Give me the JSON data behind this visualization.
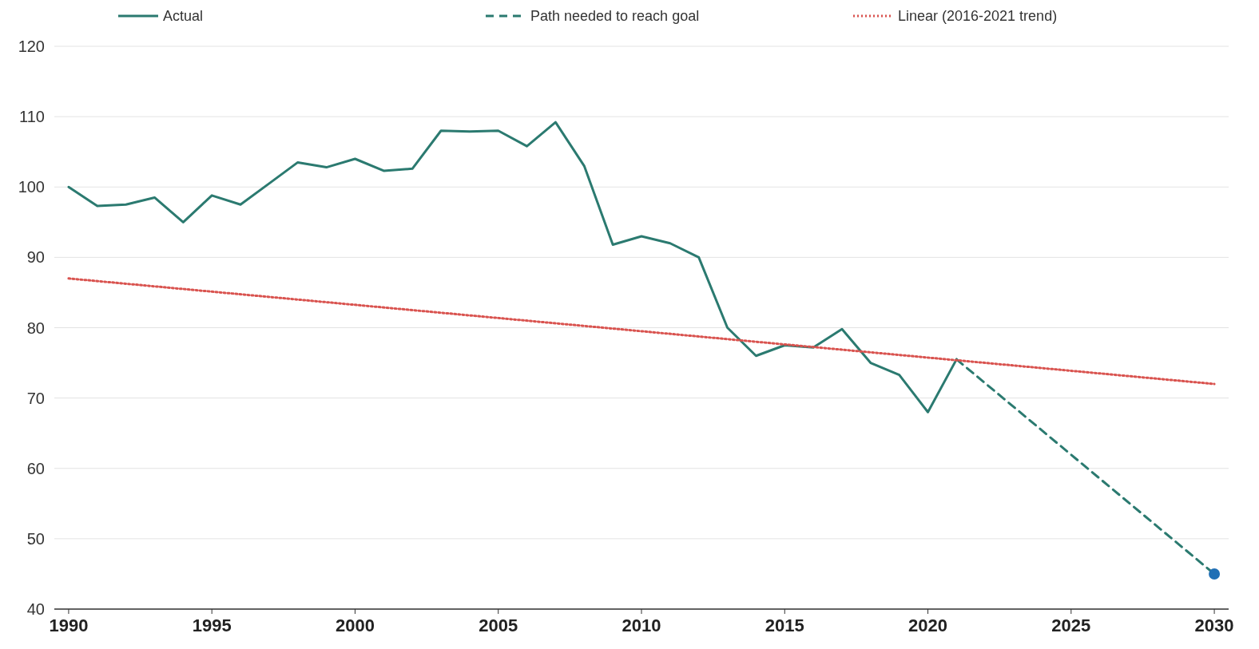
{
  "chart_data": {
    "type": "line",
    "xlim": [
      1989.5,
      2030.5
    ],
    "xticks": [
      1990,
      1995,
      2000,
      2005,
      2010,
      2015,
      2020,
      2025,
      2030
    ],
    "ylim": [
      40,
      120
    ],
    "yticks": [
      40,
      50,
      60,
      70,
      80,
      90,
      100,
      110,
      120
    ],
    "grid": "y",
    "legend": "top",
    "series": [
      {
        "name": "Actual",
        "color": "#2b7a70",
        "line_style": "solid",
        "x": [
          1990,
          1991,
          1992,
          1993,
          1994,
          1995,
          1996,
          1997,
          1998,
          1999,
          2000,
          2001,
          2002,
          2003,
          2004,
          2005,
          2006,
          2007,
          2008,
          2009,
          2010,
          2011,
          2012,
          2013,
          2014,
          2015,
          2016,
          2017,
          2018,
          2019,
          2020,
          2021
        ],
        "values": [
          100,
          97.3,
          97.5,
          98.5,
          95,
          98.8,
          97.5,
          100.5,
          103.5,
          102.8,
          104,
          102.3,
          102.6,
          108,
          107.9,
          108,
          105.8,
          109.2,
          103,
          91.8,
          93,
          92,
          90,
          80,
          76,
          77.5,
          77.2,
          79.8,
          75,
          73.3,
          68,
          75.5
        ]
      },
      {
        "name": "Path needed to reach goal",
        "color": "#2b7a70",
        "line_style": "dashed",
        "x": [
          2021,
          2030
        ],
        "values": [
          75.5,
          45
        ]
      },
      {
        "name": "Linear (2016-2021 trend)",
        "color": "#d9534f",
        "line_style": "dotted",
        "x": [
          1990,
          2030
        ],
        "values": [
          87,
          72
        ]
      },
      {
        "type": "scatter",
        "marker": "circle",
        "color": "#1f6fb5",
        "x": [
          2030
        ],
        "values": [
          45
        ]
      }
    ]
  }
}
